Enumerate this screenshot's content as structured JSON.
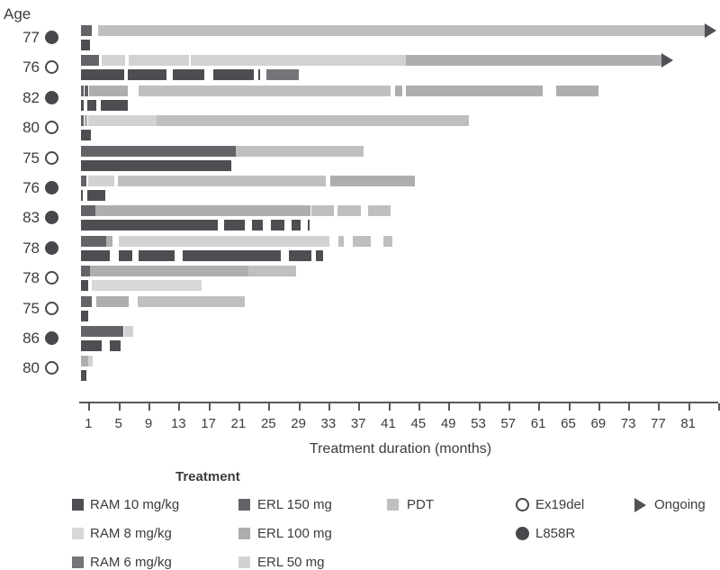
{
  "chart_data": {
    "type": "swimmer",
    "title": "",
    "age_header": "Age",
    "x_axis": {
      "label": "Treatment duration (months)",
      "ticks": [
        1,
        5,
        9,
        13,
        17,
        21,
        25,
        29,
        33,
        37,
        41,
        45,
        49,
        53,
        57,
        61,
        65,
        69,
        73,
        77,
        81
      ],
      "unlabeled_tick": 85,
      "xlim": [
        0,
        85
      ],
      "units": "months"
    },
    "palette": {
      "RAM 10 mg/kg": "#4e4e52",
      "RAM 8 mg/kg": "#d7d7d9",
      "RAM 6 mg/kg": "#757579",
      "ERL 150 mg": "#646468",
      "ERL 100 mg": "#aeaeb0",
      "ERL 50 mg": "#d2d2d4",
      "PDT": "#bfbfc1"
    },
    "marker_styles": {
      "Ex19del": "open",
      "L858R": "filled"
    },
    "arrow_color": "#515155",
    "patients": [
      {
        "age": 77,
        "mutation": "L858R",
        "ongoing": true,
        "ongoing_lane": "line1",
        "lanes": {
          "line1": [
            {
              "treatment": "ERL 150 mg",
              "start": 0,
              "end": 1.4
            },
            {
              "treatment": "PDT",
              "start": 2.3,
              "end": 83.2
            }
          ],
          "line2": [
            {
              "treatment": "RAM 10 mg/kg",
              "start": 0,
              "end": 1.2
            }
          ]
        }
      },
      {
        "age": 76,
        "mutation": "Ex19del",
        "ongoing": true,
        "ongoing_lane": "line1",
        "lanes": {
          "line1": [
            {
              "treatment": "ERL 150 mg",
              "start": 0,
              "end": 2.4
            },
            {
              "treatment": "ERL 50 mg",
              "start": 2.7,
              "end": 5.9
            },
            {
              "treatment": "ERL 50 mg",
              "start": 6.3,
              "end": 14.4
            },
            {
              "treatment": "ERL 50 mg",
              "start": 14.6,
              "end": 43.3
            },
            {
              "treatment": "ERL 100 mg",
              "start": 43.3,
              "end": 77.4
            }
          ],
          "line2": [
            {
              "treatment": "RAM 10 mg/kg",
              "start": 0,
              "end": 5.7
            },
            {
              "treatment": "RAM 10 mg/kg",
              "start": 6.2,
              "end": 11.4
            },
            {
              "treatment": "RAM 10 mg/kg",
              "start": 12.2,
              "end": 16.5
            },
            {
              "treatment": "RAM 10 mg/kg",
              "start": 17.6,
              "end": 23.0
            },
            {
              "treatment": "RAM 10 mg/kg",
              "start": 23.6,
              "end": 23.9
            },
            {
              "treatment": "RAM 6 mg/kg",
              "start": 24.7,
              "end": 29.1
            }
          ]
        }
      },
      {
        "age": 82,
        "mutation": "L858R",
        "ongoing": false,
        "lanes": {
          "line1": [
            {
              "treatment": "ERL 150 mg",
              "start": 0,
              "end": 0.35
            },
            {
              "treatment": "ERL 150 mg",
              "start": 0.5,
              "end": 1.0
            },
            {
              "treatment": "ERL 100 mg",
              "start": 1.1,
              "end": 6.3
            },
            {
              "treatment": "PDT",
              "start": 7.7,
              "end": 41.3
            },
            {
              "treatment": "ERL 100 mg",
              "start": 41.9,
              "end": 42.9
            },
            {
              "treatment": "ERL 100 mg",
              "start": 43.3,
              "end": 61.6
            },
            {
              "treatment": "ERL 100 mg",
              "start": 63.4,
              "end": 69.0
            }
          ],
          "line2": [
            {
              "treatment": "RAM 10 mg/kg",
              "start": 0,
              "end": 0.3
            },
            {
              "treatment": "RAM 10 mg/kg",
              "start": 0.8,
              "end": 2.1
            },
            {
              "treatment": "RAM 10 mg/kg",
              "start": 2.6,
              "end": 6.2
            }
          ]
        }
      },
      {
        "age": 80,
        "mutation": "Ex19del",
        "ongoing": false,
        "lanes": {
          "line1": [
            {
              "treatment": "ERL 150 mg",
              "start": 0,
              "end": 0.35
            },
            {
              "treatment": "ERL 100 mg",
              "start": 0.5,
              "end": 0.8
            },
            {
              "treatment": "ERL 50 mg",
              "start": 0.9,
              "end": 10.1
            },
            {
              "treatment": "PDT",
              "start": 10.1,
              "end": 51.8
            }
          ],
          "line2": [
            {
              "treatment": "RAM 10 mg/kg",
              "start": 0,
              "end": 1.3
            }
          ]
        }
      },
      {
        "age": 75,
        "mutation": "Ex19del",
        "ongoing": false,
        "lanes": {
          "line1": [
            {
              "treatment": "ERL 150 mg",
              "start": 0,
              "end": 20.7
            },
            {
              "treatment": "PDT",
              "start": 20.7,
              "end": 37.7
            }
          ],
          "line2": [
            {
              "treatment": "RAM 10 mg/kg",
              "start": 0,
              "end": 20.1
            }
          ]
        }
      },
      {
        "age": 76,
        "mutation": "L858R",
        "ongoing": false,
        "lanes": {
          "line1": [
            {
              "treatment": "ERL 150 mg",
              "start": 0,
              "end": 0.7
            },
            {
              "treatment": "ERL 50 mg",
              "start": 0.9,
              "end": 4.4
            },
            {
              "treatment": "PDT",
              "start": 4.9,
              "end": 32.7
            },
            {
              "treatment": "ERL 100 mg",
              "start": 33.3,
              "end": 44.5
            }
          ],
          "line2": [
            {
              "treatment": "RAM 10 mg/kg",
              "start": 0,
              "end": 0.25
            },
            {
              "treatment": "RAM 10 mg/kg",
              "start": 0.8,
              "end": 3.3
            }
          ]
        }
      },
      {
        "age": 83,
        "mutation": "L858R",
        "ongoing": false,
        "lanes": {
          "line1": [
            {
              "treatment": "ERL 150 mg",
              "start": 0,
              "end": 1.9
            },
            {
              "treatment": "ERL 100 mg",
              "start": 1.9,
              "end": 30.6
            },
            {
              "treatment": "PDT",
              "start": 30.7,
              "end": 33.7
            },
            {
              "treatment": "PDT",
              "start": 34.2,
              "end": 37.3
            },
            {
              "treatment": "PDT",
              "start": 38.3,
              "end": 41.3
            }
          ],
          "line2": [
            {
              "treatment": "RAM 10 mg/kg",
              "start": 0,
              "end": 18.3
            },
            {
              "treatment": "RAM 10 mg/kg",
              "start": 19.1,
              "end": 21.8
            },
            {
              "treatment": "RAM 10 mg/kg",
              "start": 22.8,
              "end": 24.2
            },
            {
              "treatment": "RAM 10 mg/kg",
              "start": 25.3,
              "end": 27.1
            },
            {
              "treatment": "RAM 10 mg/kg",
              "start": 28.1,
              "end": 29.3
            },
            {
              "treatment": "RAM 10 mg/kg",
              "start": 30.2,
              "end": 30.45
            }
          ]
        }
      },
      {
        "age": 78,
        "mutation": "L858R",
        "ongoing": false,
        "lanes": {
          "line1": [
            {
              "treatment": "ERL 150 mg",
              "start": 0,
              "end": 3.3
            },
            {
              "treatment": "ERL 100 mg",
              "start": 3.4,
              "end": 4.2
            },
            {
              "treatment": "ERL 50 mg",
              "start": 5.0,
              "end": 33.1
            },
            {
              "treatment": "PDT",
              "start": 34.3,
              "end": 35.1
            },
            {
              "treatment": "PDT",
              "start": 36.2,
              "end": 38.6
            },
            {
              "treatment": "PDT",
              "start": 40.3,
              "end": 41.6
            }
          ],
          "line2": [
            {
              "treatment": "RAM 10 mg/kg",
              "start": 0,
              "end": 3.8
            },
            {
              "treatment": "RAM 10 mg/kg",
              "start": 5.0,
              "end": 6.9
            },
            {
              "treatment": "RAM 10 mg/kg",
              "start": 7.7,
              "end": 12.5
            },
            {
              "treatment": "RAM 10 mg/kg",
              "start": 13.5,
              "end": 26.6
            },
            {
              "treatment": "RAM 10 mg/kg",
              "start": 27.7,
              "end": 30.7
            },
            {
              "treatment": "RAM 10 mg/kg",
              "start": 31.3,
              "end": 32.3
            }
          ]
        }
      },
      {
        "age": 78,
        "mutation": "Ex19del",
        "ongoing": false,
        "lanes": {
          "line1": [
            {
              "treatment": "ERL 150 mg",
              "start": 0,
              "end": 1.2
            },
            {
              "treatment": "ERL 100 mg",
              "start": 1.2,
              "end": 22.3
            },
            {
              "treatment": "PDT",
              "start": 22.3,
              "end": 28.7
            }
          ],
          "line2": [
            {
              "treatment": "RAM 10 mg/kg",
              "start": 0,
              "end": 0.9
            },
            {
              "treatment": "RAM 8 mg/kg",
              "start": 1.4,
              "end": 16.1
            }
          ]
        }
      },
      {
        "age": 75,
        "mutation": "Ex19del",
        "ongoing": false,
        "lanes": {
          "line1": [
            {
              "treatment": "ERL 150 mg",
              "start": 0,
              "end": 1.4
            },
            {
              "treatment": "ERL 100 mg",
              "start": 2.0,
              "end": 6.4
            },
            {
              "treatment": "PDT",
              "start": 7.5,
              "end": 21.8
            }
          ],
          "line2": [
            {
              "treatment": "RAM 10 mg/kg",
              "start": 0,
              "end": 1.0
            }
          ]
        }
      },
      {
        "age": 86,
        "mutation": "L858R",
        "ongoing": false,
        "lanes": {
          "line1": [
            {
              "treatment": "ERL 150 mg",
              "start": 0,
              "end": 5.6
            },
            {
              "treatment": "ERL 50 mg",
              "start": 5.7,
              "end": 6.9
            }
          ],
          "line2": [
            {
              "treatment": "RAM 10 mg/kg",
              "start": 0,
              "end": 2.8
            },
            {
              "treatment": "RAM 10 mg/kg",
              "start": 3.8,
              "end": 5.3
            }
          ]
        }
      },
      {
        "age": 80,
        "mutation": "Ex19del",
        "ongoing": false,
        "lanes": {
          "line1": [
            {
              "treatment": "ERL 100 mg",
              "start": 0,
              "end": 0.9
            },
            {
              "treatment": "ERL 50 mg",
              "start": 1.0,
              "end": 1.6
            }
          ],
          "line2": [
            {
              "treatment": "RAM 10 mg/kg",
              "start": 0,
              "end": 0.7
            }
          ]
        }
      }
    ]
  },
  "legend": {
    "title": "Treatment",
    "columns": [
      {
        "items": [
          {
            "label": "RAM 10 mg/kg",
            "swatch": "RAM 10 mg/kg"
          },
          {
            "label": "RAM 8 mg/kg",
            "swatch": "RAM 8 mg/kg"
          },
          {
            "label": "RAM 6 mg/kg",
            "swatch": "RAM 6 mg/kg"
          }
        ]
      },
      {
        "items": [
          {
            "label": "ERL 150 mg",
            "swatch": "ERL 150 mg"
          },
          {
            "label": "ERL 100 mg",
            "swatch": "ERL 100 mg"
          },
          {
            "label": "ERL 50 mg",
            "swatch": "ERL 50 mg"
          }
        ]
      },
      {
        "items": [
          {
            "label": "PDT",
            "swatch": "PDT"
          }
        ]
      },
      {
        "items": [
          {
            "label": "Ex19del",
            "marker": "open"
          },
          {
            "label": "L858R",
            "marker": "filled"
          }
        ]
      },
      {
        "items": [
          {
            "label": "Ongoing",
            "glyph": "arrow"
          }
        ]
      }
    ]
  }
}
